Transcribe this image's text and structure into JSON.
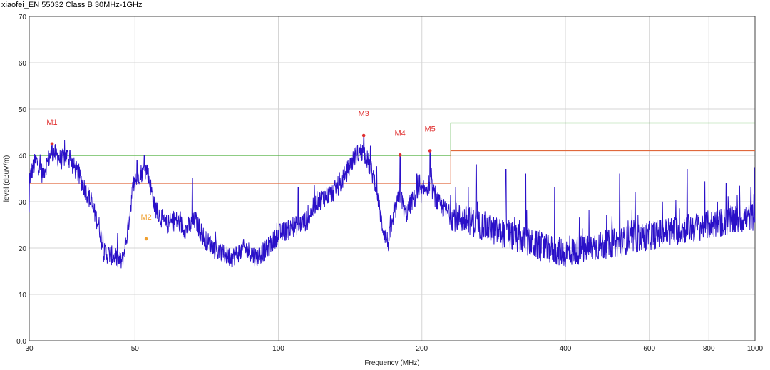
{
  "chart_data": {
    "type": "line",
    "title": "xiaofei_EN 55032 Class B 30MHz-1GHz",
    "xlabel": "Frequency (MHz)",
    "ylabel": "level (dBuV/m)",
    "x_scale": "log",
    "xlim": [
      30,
      1000
    ],
    "ylim": [
      0,
      70
    ],
    "x_ticks": [
      {
        "value": 30,
        "label": "30"
      },
      {
        "value": 50,
        "label": "50"
      },
      {
        "value": 100,
        "label": "100"
      },
      {
        "value": 200,
        "label": "200"
      },
      {
        "value": 400,
        "label": "400"
      },
      {
        "value": 600,
        "label": "600"
      },
      {
        "value": 800,
        "label": "800"
      },
      {
        "value": 1000,
        "label": "1000"
      }
    ],
    "y_ticks": [
      {
        "value": 0,
        "label": "0.0"
      },
      {
        "value": 10,
        "label": "10"
      },
      {
        "value": 20,
        "label": "20"
      },
      {
        "value": 30,
        "label": "30"
      },
      {
        "value": 40,
        "label": "40"
      },
      {
        "value": 50,
        "label": "50"
      },
      {
        "value": 60,
        "label": "60"
      },
      {
        "value": 70,
        "label": "70"
      }
    ],
    "grid": true,
    "colors": {
      "trace": "#2a10c8",
      "limit_qp": "#4caf3a",
      "limit_avg": "#e0683c",
      "marker": "#e03030",
      "marker_alt": "#f0a030",
      "grid": "#d4d4d4"
    },
    "limit_lines": [
      {
        "points": [
          [
            30,
            40
          ],
          [
            230,
            40
          ],
          [
            230,
            47
          ],
          [
            1000,
            47
          ]
        ],
        "color": "#4caf3a"
      },
      {
        "points": [
          [
            30,
            34
          ],
          [
            230,
            34
          ],
          [
            230,
            41
          ],
          [
            1000,
            41
          ]
        ],
        "color": "#e0683c"
      }
    ],
    "markers": [
      {
        "label": "M1",
        "x": 33.5,
        "y": 42.5,
        "color": "#e03030"
      },
      {
        "label": "M2",
        "x": 52.8,
        "y": 22.0,
        "color": "#f0a030"
      },
      {
        "label": "M3",
        "x": 151,
        "y": 44.3,
        "color": "#e03030"
      },
      {
        "label": "M4",
        "x": 180,
        "y": 40.1,
        "color": "#e03030"
      },
      {
        "label": "M5",
        "x": 208,
        "y": 41.0,
        "color": "#e03030"
      }
    ],
    "trace_anchors": [
      [
        30,
        35
      ],
      [
        31,
        39
      ],
      [
        32,
        36
      ],
      [
        33.5,
        41
      ],
      [
        35,
        39
      ],
      [
        36,
        40
      ],
      [
        38,
        36
      ],
      [
        40,
        31
      ],
      [
        42,
        25
      ],
      [
        43,
        19
      ],
      [
        44.5,
        18.5
      ],
      [
        46,
        17.5
      ],
      [
        47,
        17
      ],
      [
        48,
        22
      ],
      [
        49.5,
        33
      ],
      [
        51,
        36
      ],
      [
        53,
        37
      ],
      [
        55,
        29
      ],
      [
        58,
        25
      ],
      [
        61,
        26
      ],
      [
        64,
        24
      ],
      [
        67,
        26
      ],
      [
        70,
        22
      ],
      [
        75,
        19
      ],
      [
        80,
        18
      ],
      [
        85,
        20
      ],
      [
        90,
        18
      ],
      [
        95,
        20
      ],
      [
        100,
        23
      ],
      [
        105,
        24
      ],
      [
        110,
        25
      ],
      [
        115,
        26
      ],
      [
        120,
        30
      ],
      [
        125,
        31
      ],
      [
        130,
        32
      ],
      [
        135,
        34
      ],
      [
        140,
        37
      ],
      [
        145,
        40
      ],
      [
        151,
        41
      ],
      [
        155,
        38
      ],
      [
        160,
        34
      ],
      [
        165,
        25
      ],
      [
        170,
        21
      ],
      [
        175,
        27
      ],
      [
        180,
        32
      ],
      [
        185,
        27
      ],
      [
        190,
        30
      ],
      [
        200,
        32
      ],
      [
        208,
        34
      ],
      [
        215,
        30
      ],
      [
        230,
        27
      ],
      [
        250,
        26
      ],
      [
        280,
        24
      ],
      [
        320,
        22
      ],
      [
        360,
        20
      ],
      [
        400,
        19
      ],
      [
        450,
        20
      ],
      [
        500,
        21
      ],
      [
        560,
        22
      ],
      [
        620,
        23
      ],
      [
        700,
        24
      ],
      [
        800,
        25
      ],
      [
        900,
        26
      ],
      [
        1000,
        27
      ]
    ],
    "spikes": [
      [
        33.5,
        42.5
      ],
      [
        36.5,
        41
      ],
      [
        50.5,
        39
      ],
      [
        52.3,
        40
      ],
      [
        66,
        35
      ],
      [
        110,
        33
      ],
      [
        138,
        36
      ],
      [
        146,
        40
      ],
      [
        151,
        44.3
      ],
      [
        156,
        42
      ],
      [
        180,
        40.1
      ],
      [
        195,
        36
      ],
      [
        208,
        41
      ],
      [
        260,
        38
      ],
      [
        300,
        37
      ],
      [
        330,
        36
      ],
      [
        380,
        33
      ],
      [
        520,
        36
      ],
      [
        560,
        32
      ],
      [
        720,
        37
      ],
      [
        870,
        34
      ],
      [
        980,
        33
      ]
    ]
  }
}
